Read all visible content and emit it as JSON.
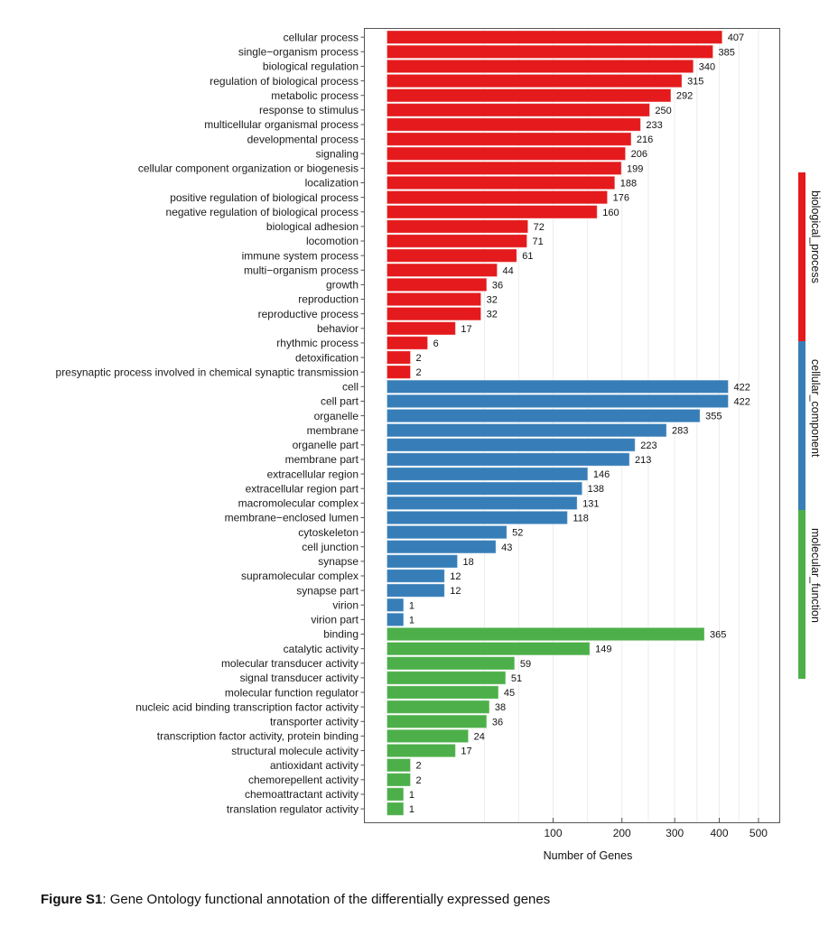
{
  "chart_data": {
    "type": "bar",
    "orientation": "horizontal",
    "x_scale": "sqrt",
    "xlabel": "Number of Genes",
    "ylabel": "",
    "xticks": [
      100,
      200,
      300,
      400,
      500
    ],
    "xlim": [
      0,
      560
    ],
    "grid": true,
    "legend_position": "right",
    "groups": [
      {
        "name": "biological_process",
        "color": "#E41A1C",
        "categories": [
          "cellular process",
          "single−organism process",
          "biological regulation",
          "regulation of biological process",
          "metabolic process",
          "response to stimulus",
          "multicellular organismal process",
          "developmental process",
          "signaling",
          "cellular component organization or biogenesis",
          "localization",
          "positive regulation of biological process",
          "negative regulation of biological process",
          "biological adhesion",
          "locomotion",
          "immune system process",
          "multi−organism process",
          "growth",
          "reproduction",
          "reproductive process",
          "behavior",
          "rhythmic process",
          "detoxification",
          "presynaptic process involved in chemical synaptic transmission"
        ],
        "values": [
          407,
          385,
          340,
          315,
          292,
          250,
          233,
          216,
          206,
          199,
          188,
          176,
          160,
          72,
          71,
          61,
          44,
          36,
          32,
          32,
          17,
          6,
          2,
          2
        ]
      },
      {
        "name": "cellular_component",
        "color": "#377EB8",
        "categories": [
          "cell",
          "cell part",
          "organelle",
          "membrane",
          "organelle part",
          "membrane part",
          "extracellular region",
          "extracellular region part",
          "macromolecular complex",
          "membrane−enclosed lumen",
          "cytoskeleton",
          "cell junction",
          "synapse",
          "supramolecular complex",
          "synapse part",
          "virion",
          "virion part"
        ],
        "values": [
          422,
          422,
          355,
          283,
          223,
          213,
          146,
          138,
          131,
          118,
          52,
          43,
          18,
          12,
          12,
          1,
          1
        ]
      },
      {
        "name": "molecular_function",
        "color": "#4DAF4A",
        "categories": [
          "binding",
          "catalytic activity",
          "molecular transducer activity",
          "signal transducer activity",
          "molecular function regulator",
          "nucleic acid binding transcription factor activity",
          "transporter activity",
          "transcription factor activity, protein binding",
          "structural molecule activity",
          "antioxidant activity",
          "chemorepellent activity",
          "chemoattractant activity",
          "translation regulator activity"
        ],
        "values": [
          365,
          149,
          59,
          51,
          45,
          38,
          36,
          24,
          17,
          2,
          2,
          1,
          1
        ]
      }
    ]
  },
  "caption": {
    "label": "Figure S1",
    "text": ": Gene Ontology functional annotation of the differentially expressed genes"
  }
}
